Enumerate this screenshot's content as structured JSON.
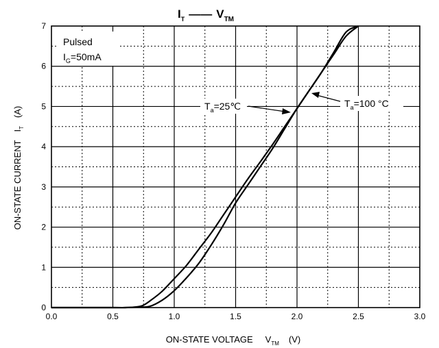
{
  "chart_data": {
    "type": "line",
    "title": {
      "main": "I",
      "main_sub": "T",
      "dash": "——",
      "second": "V",
      "second_sub": "TM"
    },
    "xlabel": {
      "text": "ON-STATE VOLTAGE",
      "symbol": "V",
      "symbol_sub": "TM",
      "unit": "(V)"
    },
    "ylabel": {
      "text": "ON-STATE CURRENT",
      "symbol": "I",
      "symbol_sub": "T",
      "unit": "(A)"
    },
    "xlim": [
      0,
      3.0
    ],
    "ylim": [
      0,
      7
    ],
    "x_ticks": [
      "0.0",
      "0.5",
      "1.0",
      "1.5",
      "2.0",
      "2.5",
      "3.0"
    ],
    "y_ticks": [
      "0",
      "1",
      "2",
      "3",
      "4",
      "5",
      "6",
      "7"
    ],
    "grid": "solid major lines with dotted minor lines",
    "conditions": {
      "line1": "Pulsed",
      "line2_symbol": "I",
      "line2_sub": "G",
      "line2_value": "=50mA"
    },
    "series": [
      {
        "name": {
          "symbol": "T",
          "sub": "a",
          "value": "=25℃"
        },
        "x": [
          0.0,
          0.5,
          0.6,
          0.7,
          0.8,
          0.9,
          1.0,
          1.1,
          1.2,
          1.3,
          1.4,
          1.5,
          1.6,
          1.7,
          1.8,
          1.9,
          2.0,
          2.1,
          2.2,
          2.3,
          2.4,
          2.5
        ],
        "y": [
          0.0,
          0.0,
          0.0,
          0.01,
          0.03,
          0.18,
          0.42,
          0.74,
          1.1,
          1.55,
          2.05,
          2.6,
          3.05,
          3.5,
          3.95,
          4.45,
          4.95,
          5.4,
          5.85,
          6.3,
          6.75,
          7.0
        ]
      },
      {
        "name": {
          "symbol": "T",
          "sub": "a",
          "value": "=100 °C"
        },
        "x": [
          0.0,
          0.5,
          0.6,
          0.7,
          0.75,
          0.8,
          0.9,
          1.0,
          1.1,
          1.2,
          1.3,
          1.4,
          1.5,
          1.6,
          1.7,
          1.8,
          1.9,
          2.0,
          2.1,
          2.2,
          2.3,
          2.4,
          2.5
        ],
        "y": [
          0.0,
          0.0,
          0.0,
          0.02,
          0.06,
          0.16,
          0.4,
          0.72,
          1.05,
          1.45,
          1.85,
          2.3,
          2.75,
          3.2,
          3.62,
          4.05,
          4.5,
          4.95,
          5.4,
          5.85,
          6.35,
          6.85,
          7.0
        ]
      }
    ]
  }
}
